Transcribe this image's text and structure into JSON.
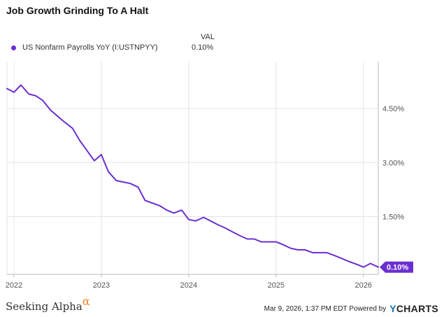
{
  "title": "Job Growth Grinding To A Halt",
  "legend": {
    "column_header": "VAL",
    "series_name": "US Nonfarm Payrolls YoY (I:USTNPYY)",
    "series_value": "0.10%"
  },
  "colors": {
    "series": "#6a2fd0",
    "grid": "#e4e4e4",
    "axis": "#bbbbbb",
    "label": "#555555"
  },
  "chart_data": {
    "type": "line",
    "title": "Job Growth Grinding To A Halt",
    "xlabel": "",
    "ylabel": "",
    "xlim": [
      2021.92,
      2026.17
    ],
    "ylim": [
      -0.1,
      5.8
    ],
    "y_ticks": [
      1.5,
      3.0,
      4.5
    ],
    "y_tick_labels": [
      "1.50%",
      "3.00%",
      "4.50%"
    ],
    "x_ticks": [
      2022,
      2023,
      2024,
      2025,
      2026
    ],
    "x_tick_labels": [
      "2022",
      "2023",
      "2024",
      "2025",
      "2026"
    ],
    "end_label": "0.10%",
    "series": [
      {
        "name": "US Nonfarm Payrolls YoY (I:USTNPYY)",
        "x": [
          2021.92,
          2022.0,
          2022.08,
          2022.17,
          2022.25,
          2022.33,
          2022.42,
          2022.5,
          2022.58,
          2022.67,
          2022.75,
          2022.83,
          2022.92,
          2023.0,
          2023.08,
          2023.17,
          2023.25,
          2023.33,
          2023.42,
          2023.5,
          2023.58,
          2023.67,
          2023.75,
          2023.83,
          2023.92,
          2024.0,
          2024.08,
          2024.17,
          2024.25,
          2024.33,
          2024.42,
          2024.5,
          2024.58,
          2024.67,
          2024.75,
          2024.83,
          2024.92,
          2025.0,
          2025.08,
          2025.17,
          2025.25,
          2025.33,
          2025.42,
          2025.5,
          2025.58,
          2025.67,
          2025.75,
          2025.83,
          2025.92,
          2026.0,
          2026.08,
          2026.17
        ],
        "values": [
          5.05,
          4.95,
          5.15,
          4.9,
          4.85,
          4.72,
          4.45,
          4.28,
          4.12,
          3.95,
          3.62,
          3.35,
          3.05,
          3.22,
          2.75,
          2.5,
          2.46,
          2.42,
          2.32,
          1.95,
          1.88,
          1.8,
          1.68,
          1.6,
          1.68,
          1.42,
          1.38,
          1.48,
          1.38,
          1.28,
          1.18,
          1.08,
          0.98,
          0.88,
          0.88,
          0.8,
          0.8,
          0.8,
          0.72,
          0.62,
          0.58,
          0.58,
          0.5,
          0.5,
          0.5,
          0.42,
          0.34,
          0.26,
          0.18,
          0.1,
          0.2,
          0.1
        ]
      }
    ]
  },
  "footer": {
    "brand": "Seeking Alpha",
    "brand_symbol": "α",
    "timestamp": "Mar 9, 2026, 1:37 PM EDT",
    "powered_by": "Powered by",
    "ycharts_y": "Y",
    "ycharts_rest": "CHARTS"
  }
}
